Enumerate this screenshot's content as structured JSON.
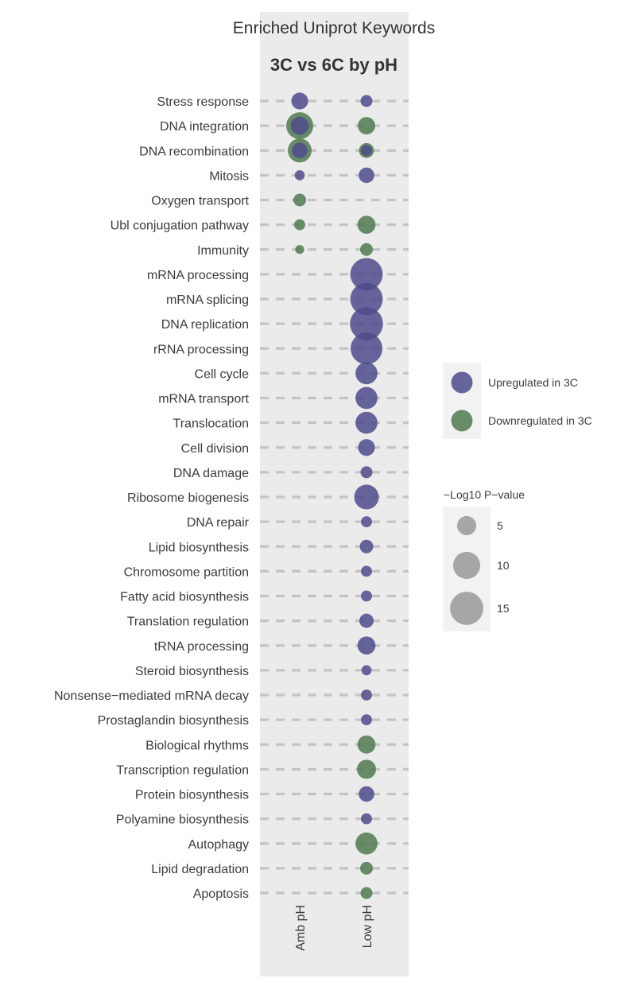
{
  "chart_data": {
    "type": "scatter",
    "title": "Enriched Uniprot Keywords",
    "facet_label": "3C vs 6C by pH",
    "x_categories": [
      "Amb pH",
      "Low pH"
    ],
    "y_categories": [
      "Stress response",
      "DNA integration",
      "DNA recombination",
      "Mitosis",
      "Oxygen transport",
      "Ubl conjugation pathway",
      "Immunity",
      "mRNA processing",
      "mRNA splicing",
      "DNA replication",
      "rRNA processing",
      "Cell cycle",
      "mRNA transport",
      "Translocation",
      "Cell division",
      "DNA damage",
      "Ribosome biogenesis",
      "DNA repair",
      "Lipid biosynthesis",
      "Chromosome partition",
      "Fatty acid biosynthesis",
      "Translation regulation",
      "tRNA processing",
      "Steroid biosynthesis",
      "Nonsense−mediated mRNA decay",
      "Prostaglandin biosynthesis",
      "Biological rhythms",
      "Transcription regulation",
      "Protein biosynthesis",
      "Polyamine biosynthesis",
      "Autophagy",
      "Lipid degradation",
      "Apoptosis"
    ],
    "size_measure": "−Log10 P−value",
    "points": [
      {
        "keyword": "Stress response",
        "condition": "Amb pH",
        "direction": "up",
        "value": 7
      },
      {
        "keyword": "Stress response",
        "condition": "Low pH",
        "direction": "up",
        "value": 3.5
      },
      {
        "keyword": "DNA integration",
        "condition": "Amb pH",
        "direction": "down",
        "value": 18
      },
      {
        "keyword": "DNA integration",
        "condition": "Amb pH",
        "direction": "up",
        "value": 8
      },
      {
        "keyword": "DNA integration",
        "condition": "Low pH",
        "direction": "down",
        "value": 7.5
      },
      {
        "keyword": "DNA recombination",
        "condition": "Amb pH",
        "direction": "down",
        "value": 14
      },
      {
        "keyword": "DNA recombination",
        "condition": "Amb pH",
        "direction": "up",
        "value": 6
      },
      {
        "keyword": "DNA recombination",
        "condition": "Low pH",
        "direction": "down",
        "value": 5.5
      },
      {
        "keyword": "DNA recombination",
        "condition": "Low pH",
        "direction": "up",
        "value": 3
      },
      {
        "keyword": "Mitosis",
        "condition": "Amb pH",
        "direction": "up",
        "value": 2.5
      },
      {
        "keyword": "Mitosis",
        "condition": "Low pH",
        "direction": "up",
        "value": 6
      },
      {
        "keyword": "Oxygen transport",
        "condition": "Amb pH",
        "direction": "down",
        "value": 4
      },
      {
        "keyword": "Ubl conjugation pathway",
        "condition": "Amb pH",
        "direction": "down",
        "value": 3
      },
      {
        "keyword": "Ubl conjugation pathway",
        "condition": "Low pH",
        "direction": "down",
        "value": 8
      },
      {
        "keyword": "Immunity",
        "condition": "Amb pH",
        "direction": "down",
        "value": 2
      },
      {
        "keyword": "Immunity",
        "condition": "Low pH",
        "direction": "down",
        "value": 4
      },
      {
        "keyword": "mRNA processing",
        "condition": "Low pH",
        "direction": "up",
        "value": 26
      },
      {
        "keyword": "mRNA splicing",
        "condition": "Low pH",
        "direction": "up",
        "value": 26
      },
      {
        "keyword": "DNA replication",
        "condition": "Low pH",
        "direction": "up",
        "value": 27
      },
      {
        "keyword": "rRNA processing",
        "condition": "Low pH",
        "direction": "up",
        "value": 25
      },
      {
        "keyword": "Cell cycle",
        "condition": "Low pH",
        "direction": "up",
        "value": 12
      },
      {
        "keyword": "mRNA transport",
        "condition": "Low pH",
        "direction": "up",
        "value": 12
      },
      {
        "keyword": "Translocation",
        "condition": "Low pH",
        "direction": "up",
        "value": 12
      },
      {
        "keyword": "Cell division",
        "condition": "Low pH",
        "direction": "up",
        "value": 7
      },
      {
        "keyword": "DNA damage",
        "condition": "Low pH",
        "direction": "up",
        "value": 3.5
      },
      {
        "keyword": "Ribosome biogenesis",
        "condition": "Low pH",
        "direction": "up",
        "value": 15
      },
      {
        "keyword": "DNA repair",
        "condition": "Low pH",
        "direction": "up",
        "value": 3
      },
      {
        "keyword": "Lipid biosynthesis",
        "condition": "Low pH",
        "direction": "up",
        "value": 4.5
      },
      {
        "keyword": "Chromosome partition",
        "condition": "Low pH",
        "direction": "up",
        "value": 3
      },
      {
        "keyword": "Fatty acid biosynthesis",
        "condition": "Low pH",
        "direction": "up",
        "value": 3
      },
      {
        "keyword": "Translation regulation",
        "condition": "Low pH",
        "direction": "up",
        "value": 5
      },
      {
        "keyword": "tRNA processing",
        "condition": "Low pH",
        "direction": "up",
        "value": 8
      },
      {
        "keyword": "Steroid biosynthesis",
        "condition": "Low pH",
        "direction": "up",
        "value": 2.5
      },
      {
        "keyword": "Nonsense−mediated mRNA decay",
        "condition": "Low pH",
        "direction": "up",
        "value": 3
      },
      {
        "keyword": "Prostaglandin biosynthesis",
        "condition": "Low pH",
        "direction": "up",
        "value": 3
      },
      {
        "keyword": "Biological rhythms",
        "condition": "Low pH",
        "direction": "down",
        "value": 8
      },
      {
        "keyword": "Transcription regulation",
        "condition": "Low pH",
        "direction": "down",
        "value": 9
      },
      {
        "keyword": "Protein biosynthesis",
        "condition": "Low pH",
        "direction": "up",
        "value": 6
      },
      {
        "keyword": "Polyamine biosynthesis",
        "condition": "Low pH",
        "direction": "up",
        "value": 3
      },
      {
        "keyword": "Autophagy",
        "condition": "Low pH",
        "direction": "down",
        "value": 12
      },
      {
        "keyword": "Lipid degradation",
        "condition": "Low pH",
        "direction": "down",
        "value": 4
      },
      {
        "keyword": "Apoptosis",
        "condition": "Low pH",
        "direction": "down",
        "value": 3.5
      }
    ],
    "color_legend": [
      {
        "key": "up",
        "label": "Upregulated in 3C",
        "color": "#4f4b8c"
      },
      {
        "key": "down",
        "label": "Downregulated in 3C",
        "color": "#4f7a4f"
      }
    ],
    "size_legend": [
      {
        "label": "5",
        "value": 5
      },
      {
        "label": "10",
        "value": 10
      },
      {
        "label": "15",
        "value": 15
      }
    ],
    "size_legend_color": "#a6a6a6",
    "panel_color": "#ebebeb",
    "gridline_color": "#c4c4c4",
    "point_opacity": 0.85,
    "legend_position": "right",
    "grid": true
  }
}
